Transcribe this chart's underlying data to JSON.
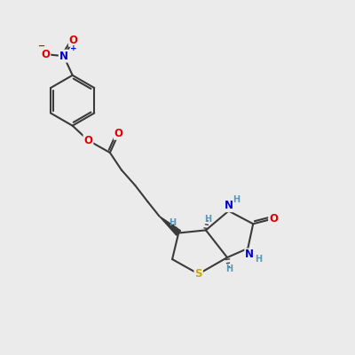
{
  "background_color": "#ebebeb",
  "bond_color": "#3a3a3a",
  "bond_width": 1.5,
  "atom_colors": {
    "O": "#dd0000",
    "N": "#0000cc",
    "S": "#ccaa00",
    "H": "#5599bb",
    "C": "#3a3a3a"
  },
  "font_size_atoms": 8.5,
  "font_size_h": 7.0,
  "font_size_charge": 6.5
}
